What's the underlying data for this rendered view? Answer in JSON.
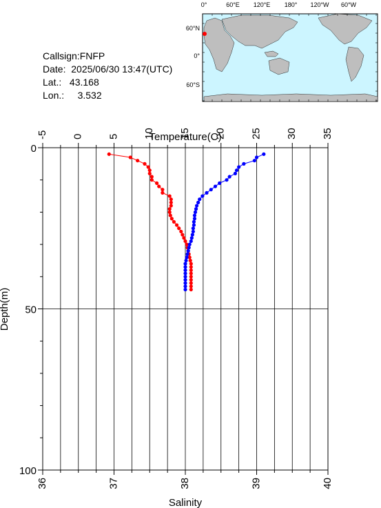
{
  "station": {
    "callsign_label": "Callsign:",
    "callsign": "FNFP",
    "date_label": "Date:",
    "date": "2025/06/30 13:47(UTC)",
    "lat_label": "Lat.:",
    "lat": "43.168",
    "lon_label": "Lon.:",
    "lon": "3.532"
  },
  "map": {
    "top_labels": [
      "0°",
      "60°E",
      "120°E",
      "180°",
      "120°W",
      "60°W"
    ],
    "left_labels": [
      "60°N",
      "0°",
      "60°S"
    ],
    "ocean_color": "#ccf5ff",
    "land_color": "#bebebe",
    "marker_color": "#ff0000"
  },
  "chart_data": {
    "type": "line",
    "ylabel": "Depth(m)",
    "ylim": [
      100,
      0
    ],
    "yticks": [
      0,
      50,
      100
    ],
    "top_axis": {
      "label": "Temperature(C)",
      "range": [
        -5,
        35
      ],
      "ticks": [
        -5,
        0,
        5,
        10,
        15,
        20,
        25,
        30,
        35
      ]
    },
    "bottom_axis": {
      "label": "Salinity",
      "range": [
        36,
        40
      ],
      "ticks": [
        36,
        37,
        38,
        39,
        40
      ]
    },
    "grid": true,
    "series": [
      {
        "color": "#ff0000",
        "axis": "temperature",
        "points": [
          [
            4.3,
            2
          ],
          [
            7.3,
            3
          ],
          [
            8.3,
            4
          ],
          [
            9.3,
            5
          ],
          [
            9.8,
            6
          ],
          [
            10.0,
            7
          ],
          [
            10.0,
            8
          ],
          [
            10.3,
            9
          ],
          [
            10.3,
            10
          ],
          [
            11.0,
            11
          ],
          [
            11.3,
            12
          ],
          [
            11.8,
            13
          ],
          [
            11.8,
            14
          ],
          [
            12.8,
            15
          ],
          [
            13.0,
            16
          ],
          [
            13.0,
            17
          ],
          [
            13.0,
            18
          ],
          [
            12.8,
            19
          ],
          [
            12.8,
            20
          ],
          [
            12.9,
            21
          ],
          [
            13.1,
            22
          ],
          [
            13.4,
            23
          ],
          [
            13.8,
            24
          ],
          [
            14.1,
            25
          ],
          [
            14.4,
            26
          ],
          [
            14.6,
            27
          ],
          [
            14.8,
            28
          ],
          [
            15.0,
            29
          ],
          [
            15.2,
            30
          ],
          [
            15.3,
            31
          ],
          [
            15.4,
            32
          ],
          [
            15.5,
            33
          ],
          [
            15.6,
            34
          ],
          [
            15.7,
            35
          ],
          [
            15.8,
            36
          ],
          [
            15.8,
            37
          ],
          [
            15.8,
            38
          ],
          [
            15.8,
            39
          ],
          [
            15.8,
            40
          ],
          [
            15.8,
            41
          ],
          [
            15.8,
            42
          ],
          [
            15.8,
            43
          ],
          [
            15.8,
            44
          ]
        ]
      },
      {
        "color": "#0000ff",
        "axis": "salinity",
        "points": [
          [
            39.1,
            2
          ],
          [
            39.0,
            3
          ],
          [
            38.97,
            4
          ],
          [
            38.82,
            5
          ],
          [
            38.75,
            6
          ],
          [
            38.72,
            7
          ],
          [
            38.7,
            8
          ],
          [
            38.62,
            9
          ],
          [
            38.58,
            10
          ],
          [
            38.48,
            11
          ],
          [
            38.42,
            12
          ],
          [
            38.36,
            13
          ],
          [
            38.3,
            14
          ],
          [
            38.24,
            15
          ],
          [
            38.2,
            16
          ],
          [
            38.18,
            17
          ],
          [
            38.16,
            18
          ],
          [
            38.15,
            19
          ],
          [
            38.14,
            20
          ],
          [
            38.13,
            21
          ],
          [
            38.13,
            22
          ],
          [
            38.12,
            23
          ],
          [
            38.12,
            24
          ],
          [
            38.11,
            25
          ],
          [
            38.11,
            26
          ],
          [
            38.1,
            27
          ],
          [
            38.09,
            28
          ],
          [
            38.08,
            29
          ],
          [
            38.06,
            30
          ],
          [
            38.05,
            31
          ],
          [
            38.04,
            32
          ],
          [
            38.03,
            33
          ],
          [
            38.02,
            34
          ],
          [
            38.01,
            35
          ],
          [
            38.0,
            36
          ],
          [
            38.0,
            37
          ],
          [
            38.0,
            38
          ],
          [
            38.0,
            39
          ],
          [
            38.0,
            40
          ],
          [
            38.0,
            41
          ],
          [
            38.0,
            42
          ],
          [
            38.0,
            43
          ],
          [
            38.0,
            44
          ]
        ]
      }
    ]
  }
}
